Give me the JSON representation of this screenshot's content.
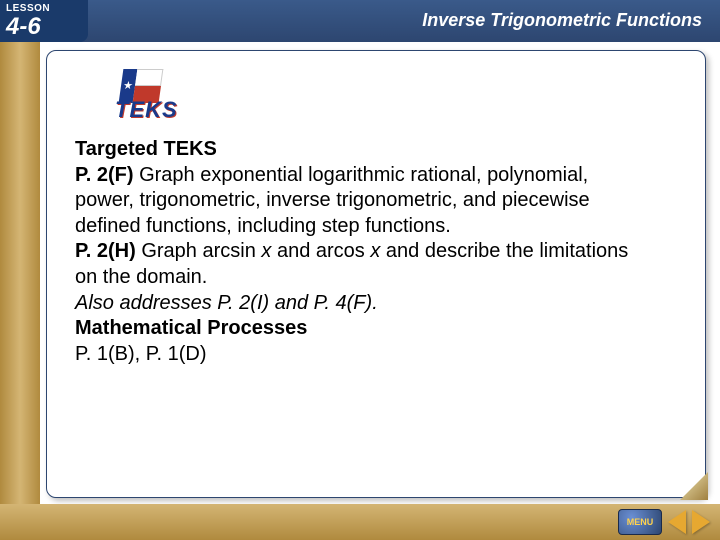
{
  "header": {
    "lesson_label": "LESSON",
    "lesson_number": "4-6",
    "chapter_title": "Inverse Trigonometric Functions"
  },
  "teks_logo": {
    "text": "TEKS",
    "colors": {
      "blue": "#1a3a8a",
      "red": "#c0392b",
      "white": "#ffffff"
    }
  },
  "content": {
    "heading": "Targeted TEKS",
    "p2f_label": "P. 2(F) ",
    "p2f_text": "Graph exponential logarithmic rational, polynomial, power, trigonometric, inverse trigonometric, and piecewise defined functions, including step functions.",
    "p2h_label": "P. 2(H) ",
    "p2h_pre": "Graph arcsin ",
    "p2h_var1": "x",
    "p2h_mid": " and arcos ",
    "p2h_var2": "x",
    "p2h_post": " and describe the limitations on the domain.",
    "also": "Also addresses P. 2(I) and P. 4(F).",
    "mp_heading": "Mathematical Processes",
    "mp_text": "P. 1(B), P. 1(D)"
  },
  "footer": {
    "menu_label": "MENU"
  },
  "colors": {
    "header_bg": "#2d4670",
    "gold": "#b08a3e",
    "accent": "#e6a831"
  }
}
